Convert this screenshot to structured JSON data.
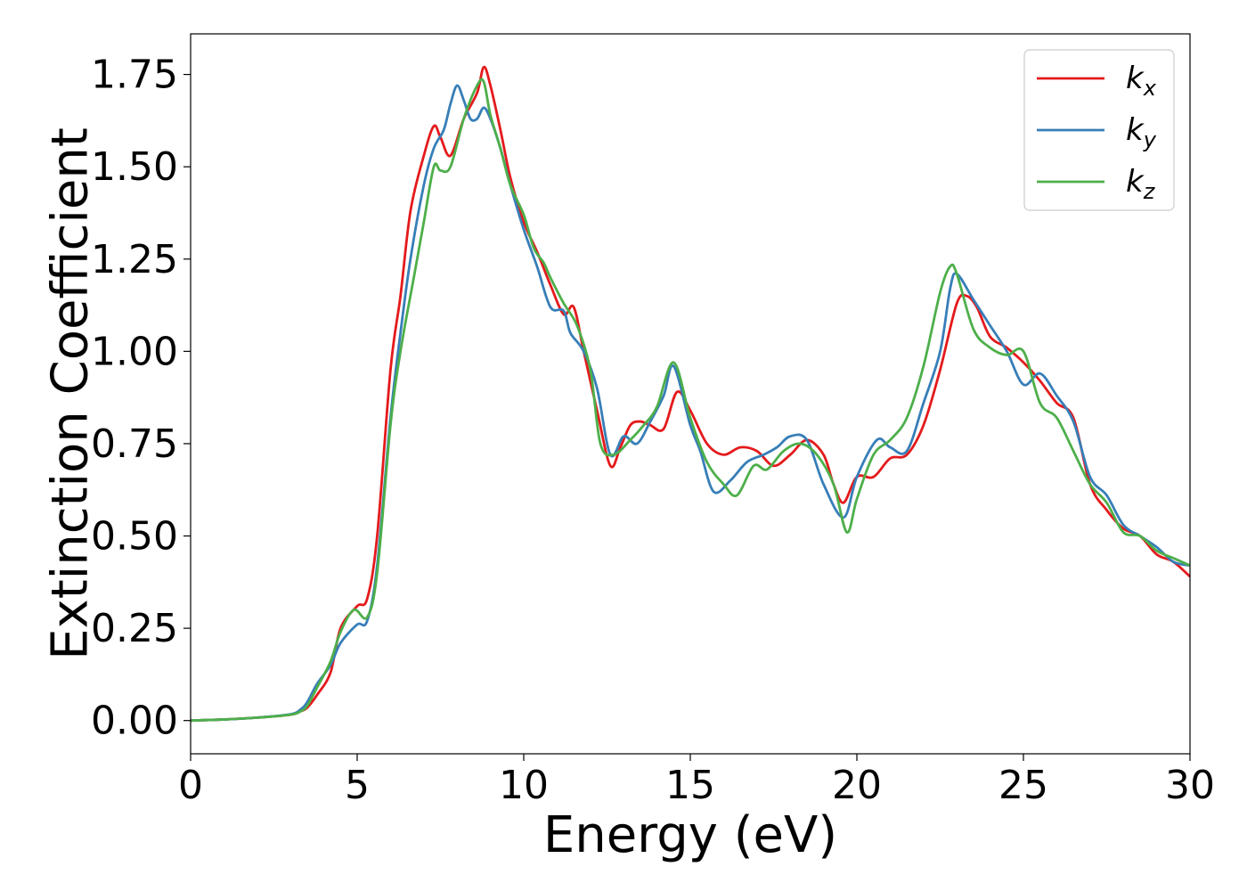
{
  "chart_data": {
    "type": "line",
    "title": "",
    "xlabel": "Energy (eV)",
    "ylabel": "Extinction Coefficient",
    "xlim": [
      0,
      30
    ],
    "ylim": [
      -0.09,
      1.86
    ],
    "xticks": [
      0,
      5,
      10,
      15,
      20,
      25,
      30
    ],
    "xtick_labels": [
      "0",
      "5",
      "10",
      "15",
      "20",
      "25",
      "30"
    ],
    "yticks": [
      0,
      0.25,
      0.5,
      0.75,
      1.0,
      1.25,
      1.5,
      1.75
    ],
    "ytick_labels": [
      "0.00",
      "0.25",
      "0.50",
      "0.75",
      "1.00",
      "1.25",
      "1.50",
      "1.75"
    ],
    "grid": false,
    "legend": "top-right",
    "series": [
      {
        "name": "k",
        "subscript": "x",
        "color": "#e41a1c",
        "x": [
          0,
          1,
          2,
          3,
          3.3,
          3.5,
          3.8,
          4.2,
          4.5,
          5.0,
          5.3,
          5.6,
          6.0,
          6.3,
          6.6,
          7.0,
          7.3,
          7.5,
          7.8,
          8.2,
          8.6,
          8.8,
          9.0,
          9.3,
          9.6,
          10.0,
          10.4,
          10.8,
          11.2,
          11.5,
          11.8,
          12.2,
          12.6,
          12.9,
          13.2,
          13.5,
          13.8,
          14.2,
          14.6,
          15.0,
          15.5,
          16.0,
          16.5,
          17.0,
          17.5,
          18.0,
          18.5,
          19.0,
          19.3,
          19.6,
          20.0,
          20.5,
          21.0,
          21.5,
          22.0,
          22.5,
          23.0,
          23.3,
          23.6,
          24.0,
          24.5,
          25.0,
          25.5,
          26.0,
          26.5,
          27.0,
          27.5,
          28.0,
          28.5,
          29.0,
          29.5,
          30.0
        ],
        "y": [
          0.0,
          0.003,
          0.008,
          0.016,
          0.025,
          0.035,
          0.07,
          0.13,
          0.25,
          0.31,
          0.33,
          0.5,
          0.95,
          1.15,
          1.38,
          1.53,
          1.61,
          1.58,
          1.53,
          1.63,
          1.7,
          1.77,
          1.72,
          1.6,
          1.47,
          1.35,
          1.27,
          1.18,
          1.1,
          1.12,
          1.0,
          0.84,
          0.69,
          0.74,
          0.8,
          0.81,
          0.8,
          0.79,
          0.89,
          0.84,
          0.75,
          0.72,
          0.74,
          0.73,
          0.69,
          0.72,
          0.76,
          0.72,
          0.64,
          0.59,
          0.66,
          0.66,
          0.71,
          0.72,
          0.8,
          0.95,
          1.13,
          1.15,
          1.12,
          1.04,
          1.01,
          0.97,
          0.92,
          0.86,
          0.82,
          0.64,
          0.57,
          0.52,
          0.5,
          0.45,
          0.43,
          0.39
        ]
      },
      {
        "name": "k",
        "subscript": "y",
        "color": "#377eb8",
        "x": [
          0,
          1,
          2,
          3,
          3.3,
          3.5,
          3.8,
          4.2,
          4.5,
          5.0,
          5.3,
          5.6,
          6.0,
          6.3,
          6.6,
          7.0,
          7.3,
          7.6,
          7.8,
          8.0,
          8.2,
          8.4,
          8.6,
          8.8,
          9.0,
          9.3,
          9.6,
          10.0,
          10.4,
          10.8,
          11.2,
          11.4,
          11.8,
          12.2,
          12.6,
          13.0,
          13.4,
          13.8,
          14.2,
          14.5,
          15.0,
          15.3,
          15.7,
          16.2,
          16.7,
          17.2,
          17.6,
          18.0,
          18.5,
          19.0,
          19.6,
          20.0,
          20.6,
          21.0,
          21.5,
          22.0,
          22.5,
          22.8,
          23.0,
          23.5,
          24.0,
          24.5,
          25.0,
          25.5,
          26.0,
          26.5,
          27.0,
          27.5,
          28.0,
          28.5,
          29.0,
          29.5,
          30.0
        ],
        "y": [
          0.0,
          0.003,
          0.008,
          0.017,
          0.03,
          0.05,
          0.1,
          0.15,
          0.21,
          0.26,
          0.27,
          0.42,
          0.82,
          1.05,
          1.25,
          1.45,
          1.55,
          1.6,
          1.67,
          1.72,
          1.68,
          1.63,
          1.63,
          1.66,
          1.63,
          1.55,
          1.45,
          1.33,
          1.23,
          1.12,
          1.11,
          1.05,
          1.0,
          0.9,
          0.72,
          0.77,
          0.75,
          0.81,
          0.88,
          0.96,
          0.8,
          0.73,
          0.62,
          0.65,
          0.7,
          0.72,
          0.74,
          0.77,
          0.76,
          0.64,
          0.55,
          0.66,
          0.76,
          0.74,
          0.73,
          0.86,
          1.0,
          1.17,
          1.21,
          1.14,
          1.07,
          1.0,
          0.91,
          0.94,
          0.88,
          0.81,
          0.66,
          0.61,
          0.53,
          0.5,
          0.47,
          0.43,
          0.42
        ]
      },
      {
        "name": "k",
        "subscript": "z",
        "color": "#4daf4a",
        "x": [
          0,
          1,
          2,
          3,
          3.3,
          3.5,
          3.8,
          4.2,
          4.5,
          4.9,
          5.3,
          5.6,
          6.0,
          6.3,
          6.7,
          7.0,
          7.3,
          7.5,
          7.8,
          8.2,
          8.6,
          8.8,
          9.0,
          9.3,
          9.6,
          10.0,
          10.3,
          10.6,
          10.8,
          11.2,
          11.6,
          12.0,
          12.3,
          12.7,
          13.2,
          13.6,
          14.0,
          14.5,
          15.0,
          15.5,
          16.0,
          16.4,
          16.9,
          17.3,
          17.8,
          18.3,
          18.8,
          19.3,
          19.7,
          20.0,
          20.5,
          21.0,
          21.5,
          22.0,
          22.5,
          22.8,
          23.0,
          23.5,
          24.0,
          24.5,
          25.0,
          25.5,
          26.0,
          26.5,
          27.0,
          27.5,
          28.0,
          28.5,
          29.0,
          29.5,
          30.0
        ],
        "y": [
          0.0,
          0.003,
          0.008,
          0.016,
          0.025,
          0.04,
          0.09,
          0.16,
          0.24,
          0.3,
          0.28,
          0.4,
          0.8,
          1.0,
          1.2,
          1.35,
          1.5,
          1.49,
          1.5,
          1.63,
          1.72,
          1.73,
          1.64,
          1.55,
          1.45,
          1.37,
          1.28,
          1.24,
          1.2,
          1.13,
          1.07,
          0.95,
          0.75,
          0.72,
          0.76,
          0.8,
          0.85,
          0.97,
          0.82,
          0.7,
          0.64,
          0.61,
          0.69,
          0.68,
          0.73,
          0.75,
          0.72,
          0.64,
          0.51,
          0.6,
          0.72,
          0.76,
          0.82,
          0.96,
          1.16,
          1.23,
          1.21,
          1.06,
          1.01,
          0.99,
          1.0,
          0.86,
          0.82,
          0.73,
          0.64,
          0.59,
          0.51,
          0.5,
          0.46,
          0.44,
          0.42
        ]
      }
    ]
  }
}
